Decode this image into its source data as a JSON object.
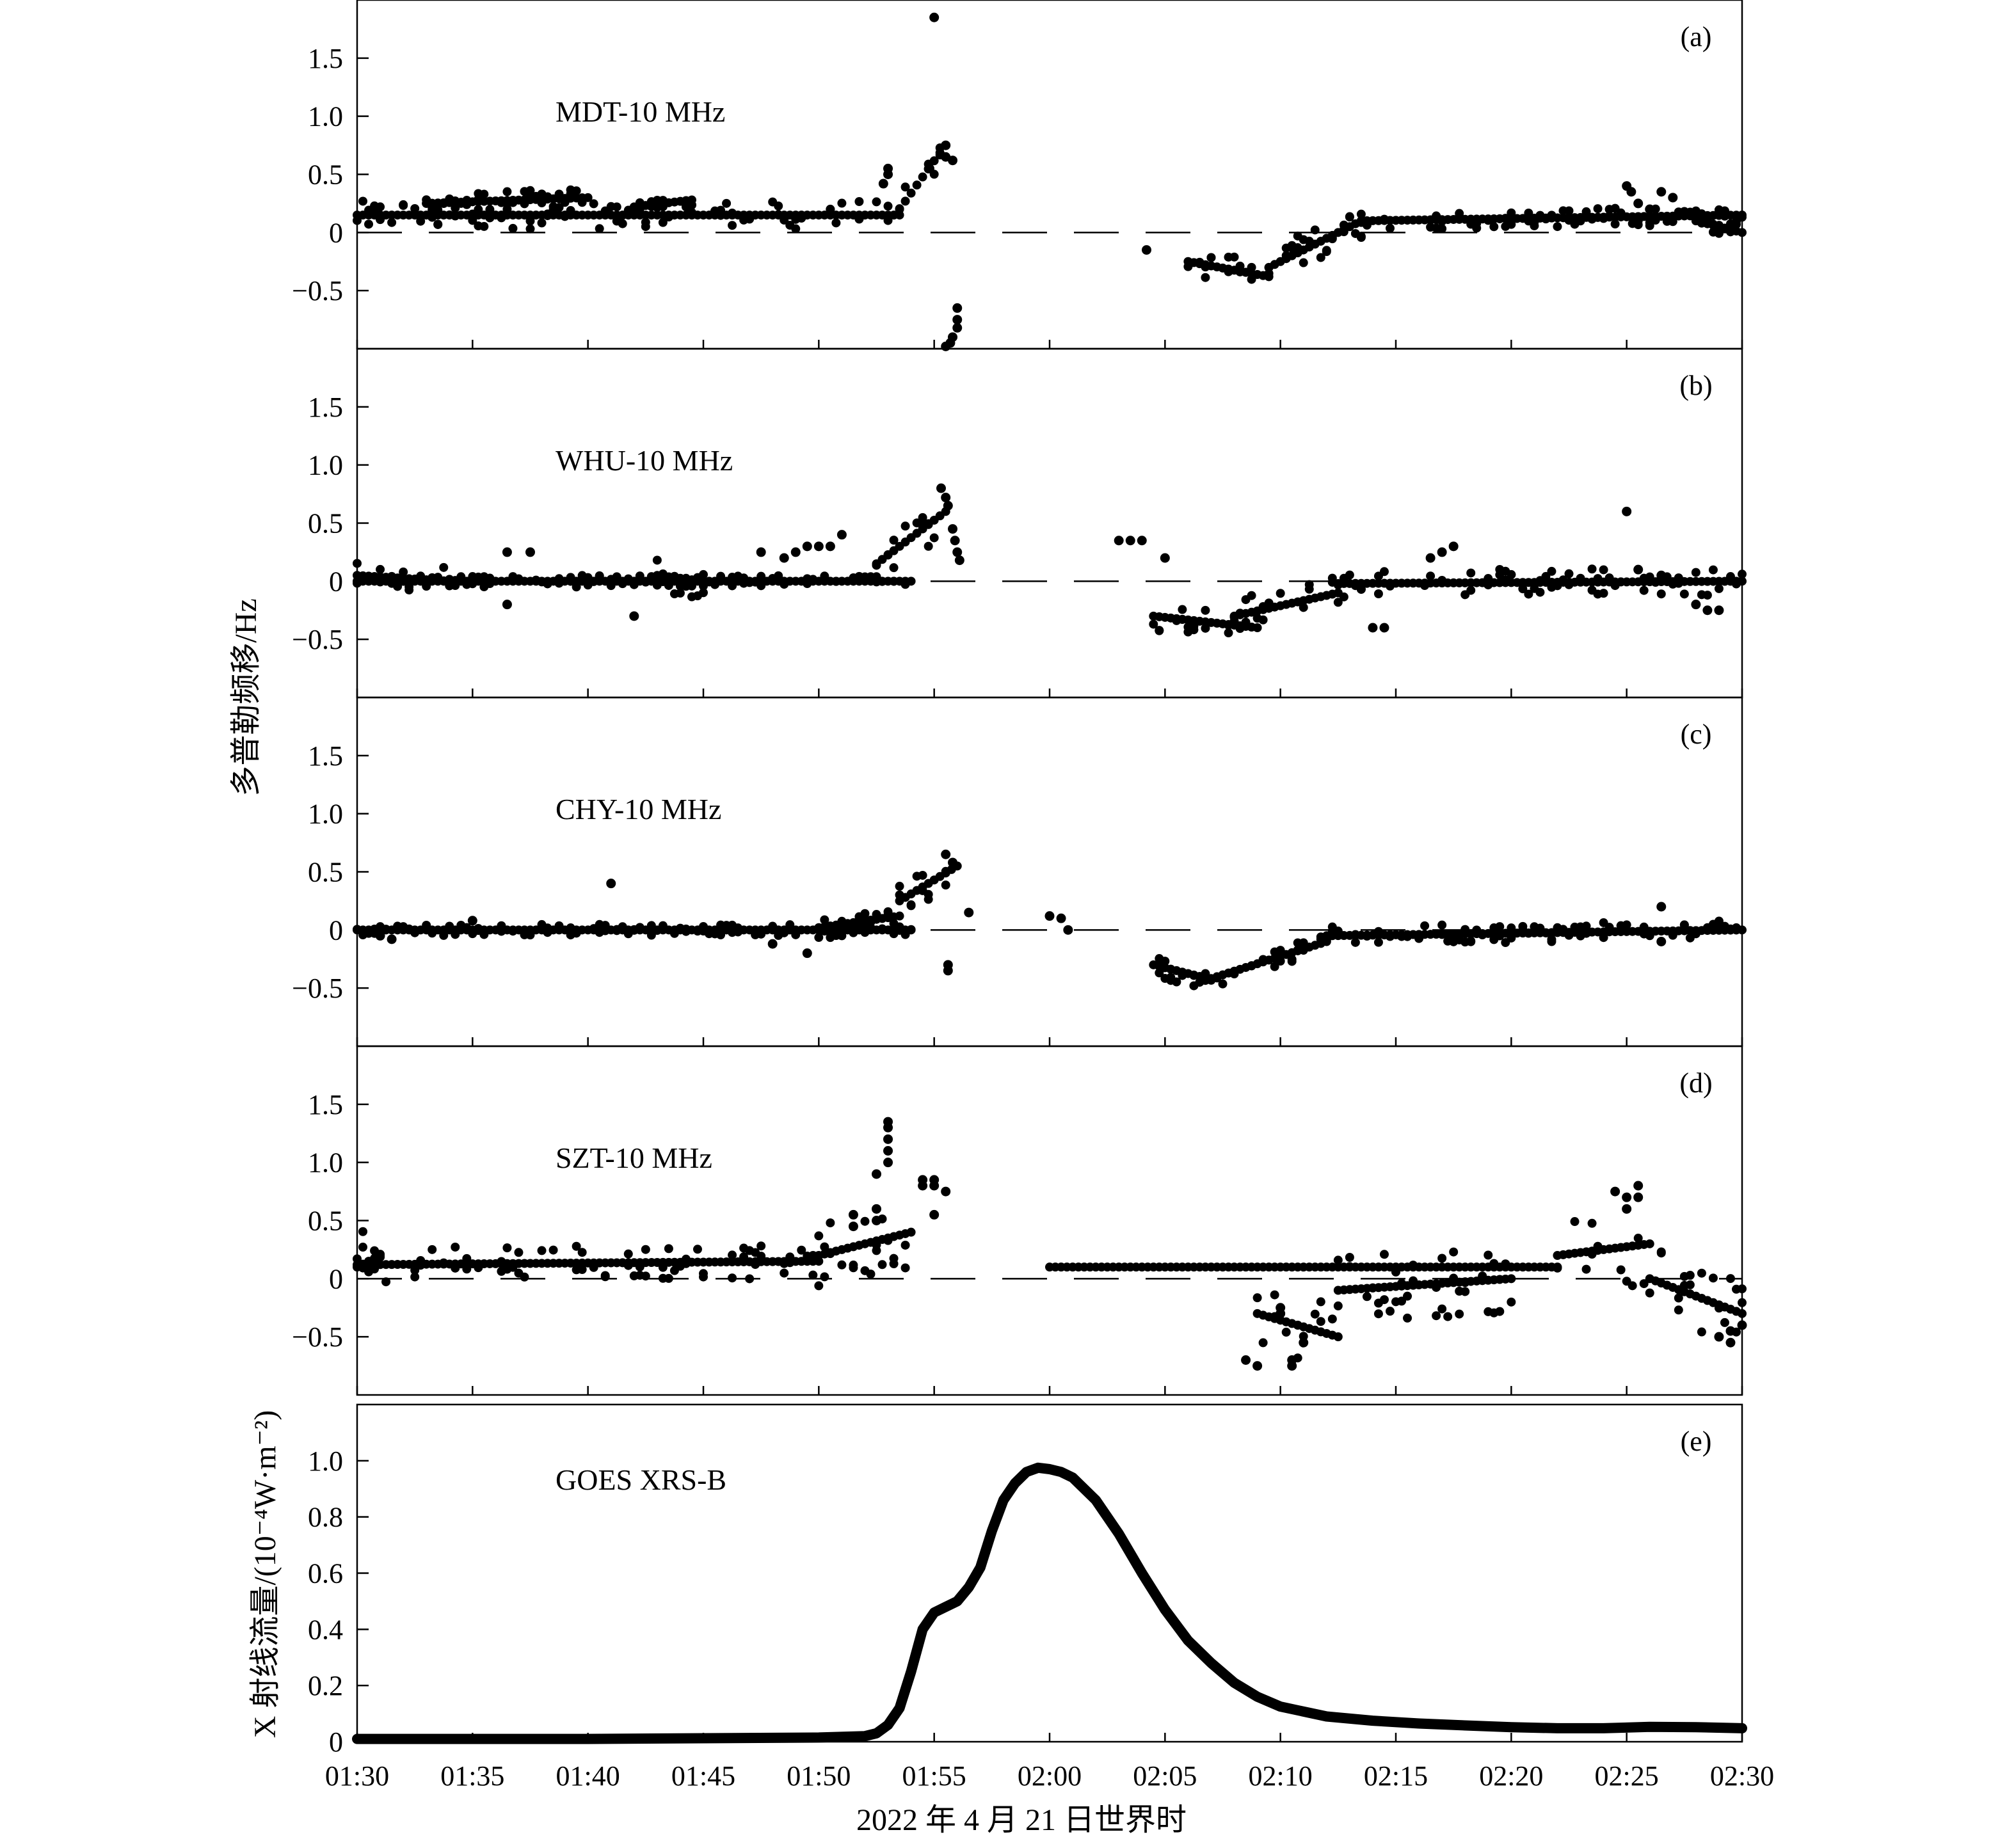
{
  "colors": {
    "ink": "#000000",
    "background": "#ffffff"
  },
  "chart_data": [
    {
      "type": "scatter",
      "panel": "(a)",
      "series_label": "MDT-10 MHz",
      "ylim": [
        -1.0,
        2.0
      ],
      "yticks": [
        "1.5",
        "1.0",
        "0.5",
        "0",
        "−0.5"
      ],
      "ytick_values": [
        1.5,
        1.0,
        0.5,
        0,
        -0.5
      ],
      "reference_line": 0,
      "segments": [
        {
          "t0": 0,
          "t1": 23.5,
          "y0": 0.15,
          "y1": 0.15,
          "spread": 0.12
        },
        {
          "t0": 3,
          "t1": 10,
          "y0": 0.25,
          "y1": 0.3,
          "spread": 0.08
        },
        {
          "t0": 12,
          "t1": 14.5,
          "y0": 0.22,
          "y1": 0.28,
          "spread": 0.05
        },
        {
          "t0": 23.5,
          "t1": 25.3,
          "y0": 0.2,
          "y1": 0.7,
          "spread": 0.15
        },
        {
          "t0": 36,
          "t1": 39.5,
          "y0": -0.25,
          "y1": -0.38,
          "spread": 0.12
        },
        {
          "t0": 39.5,
          "t1": 43.5,
          "y0": -0.3,
          "y1": 0.1,
          "spread": 0.15
        },
        {
          "t0": 43.5,
          "t1": 60,
          "y0": 0.1,
          "y1": 0.15,
          "spread": 0.08
        },
        {
          "t0": 58,
          "t1": 60,
          "y0": 0.1,
          "y1": 0.0,
          "spread": 0.06
        }
      ],
      "points": [
        [
          25.0,
          1.85
        ],
        [
          25.5,
          0.75
        ],
        [
          25.5,
          0.65
        ],
        [
          25.8,
          0.62
        ],
        [
          24.8,
          0.55
        ],
        [
          23.0,
          0.55
        ],
        [
          23.0,
          0.5
        ],
        [
          22.8,
          0.42
        ],
        [
          26.0,
          -0.65
        ],
        [
          26.0,
          -0.75
        ],
        [
          26.0,
          -0.82
        ],
        [
          25.8,
          -0.9
        ],
        [
          25.7,
          -0.95
        ],
        [
          25.5,
          -0.98
        ],
        [
          34.2,
          -0.15
        ],
        [
          55.0,
          0.4
        ],
        [
          55.2,
          0.35
        ],
        [
          56.5,
          0.35
        ],
        [
          57.0,
          0.3
        ],
        [
          55.5,
          0.25
        ],
        [
          56.0,
          0.2
        ]
      ]
    },
    {
      "type": "scatter",
      "panel": "(b)",
      "series_label": "WHU-10 MHz",
      "ylim": [
        -1.0,
        2.0
      ],
      "yticks": [
        "1.5",
        "1.0",
        "0.5",
        "0",
        "−0.5"
      ],
      "ytick_values": [
        1.5,
        1.0,
        0.5,
        0,
        -0.5
      ],
      "reference_line": 0,
      "segments": [
        {
          "t0": 0,
          "t1": 24,
          "y0": 0.0,
          "y1": 0.0,
          "spread": 0.05
        },
        {
          "t0": 0,
          "t1": 4,
          "y0": 0.05,
          "y1": 0.0,
          "spread": 0.15
        },
        {
          "t0": 13,
          "t1": 15,
          "y0": 0.05,
          "y1": 0.0,
          "spread": 0.15
        },
        {
          "t0": 22.5,
          "t1": 25.5,
          "y0": 0.15,
          "y1": 0.6,
          "spread": 0.2
        },
        {
          "t0": 34.5,
          "t1": 39,
          "y0": -0.3,
          "y1": -0.4,
          "spread": 0.12
        },
        {
          "t0": 38,
          "t1": 42.5,
          "y0": -0.3,
          "y1": -0.1,
          "spread": 0.15
        },
        {
          "t0": 42.5,
          "t1": 60,
          "y0": -0.02,
          "y1": 0.0,
          "spread": 0.12
        }
      ],
      "points": [
        [
          25.3,
          0.8
        ],
        [
          25.5,
          0.72
        ],
        [
          25.6,
          0.65
        ],
        [
          25.8,
          0.45
        ],
        [
          25.9,
          0.35
        ],
        [
          26.0,
          0.25
        ],
        [
          26.1,
          0.18
        ],
        [
          6.5,
          0.25
        ],
        [
          7.5,
          0.25
        ],
        [
          6.5,
          -0.2
        ],
        [
          12.0,
          -0.3
        ],
        [
          17.5,
          0.25
        ],
        [
          21.0,
          0.4
        ],
        [
          18.5,
          0.2
        ],
        [
          19.0,
          0.25
        ],
        [
          19.5,
          0.3
        ],
        [
          20.0,
          0.3
        ],
        [
          20.5,
          0.3
        ],
        [
          33.0,
          0.35
        ],
        [
          33.5,
          0.35
        ],
        [
          34.0,
          0.35
        ],
        [
          35.0,
          0.2
        ],
        [
          44.0,
          -0.4
        ],
        [
          44.5,
          -0.4
        ],
        [
          46.5,
          0.2
        ],
        [
          47.0,
          0.25
        ],
        [
          47.5,
          0.3
        ],
        [
          55.0,
          0.6
        ],
        [
          55.5,
          0.1
        ],
        [
          56.5,
          0.05
        ],
        [
          58.0,
          -0.2
        ],
        [
          58.5,
          -0.25
        ],
        [
          59.0,
          -0.25
        ]
      ]
    },
    {
      "type": "scatter",
      "panel": "(c)",
      "series_label": "CHY-10 MHz",
      "ylim": [
        -1.0,
        2.0
      ],
      "yticks": [
        "1.5",
        "1.0",
        "0.5",
        "0",
        "−0.5"
      ],
      "ytick_values": [
        1.5,
        1.0,
        0.5,
        0,
        -0.5
      ],
      "reference_line": 0,
      "segments": [
        {
          "t0": 0,
          "t1": 24,
          "y0": 0.0,
          "y1": 0.0,
          "spread": 0.05
        },
        {
          "t0": 20,
          "t1": 23.5,
          "y0": 0.02,
          "y1": 0.12,
          "spread": 0.1
        },
        {
          "t0": 23.5,
          "t1": 26,
          "y0": 0.25,
          "y1": 0.55,
          "spread": 0.15
        },
        {
          "t0": 34.5,
          "t1": 36.5,
          "y0": -0.3,
          "y1": -0.4,
          "spread": 0.1
        },
        {
          "t0": 36.5,
          "t1": 42,
          "y0": -0.45,
          "y1": -0.1,
          "spread": 0.08
        },
        {
          "t0": 42,
          "t1": 60,
          "y0": -0.05,
          "y1": 0.0,
          "spread": 0.08
        }
      ],
      "points": [
        [
          11.0,
          0.4
        ],
        [
          25.5,
          0.65
        ],
        [
          25.8,
          0.58
        ],
        [
          25.6,
          -0.3
        ],
        [
          25.6,
          -0.35
        ],
        [
          26.5,
          0.15
        ],
        [
          30.0,
          0.12
        ],
        [
          30.5,
          0.1
        ],
        [
          30.8,
          0.0
        ],
        [
          56.5,
          0.2
        ],
        [
          1.0,
          -0.05
        ],
        [
          1.5,
          -0.08
        ],
        [
          5.0,
          0.08
        ],
        [
          12.0,
          0.0
        ],
        [
          18.0,
          -0.12
        ],
        [
          19.5,
          -0.2
        ],
        [
          56.5,
          -0.1
        ]
      ]
    },
    {
      "type": "scatter",
      "panel": "(d)",
      "series_label": "SZT-10 MHz",
      "ylim": [
        -1.0,
        2.0
      ],
      "yticks": [
        "1.5",
        "1.0",
        "0.5",
        "0",
        "−0.5"
      ],
      "ytick_values": [
        1.5,
        1.0,
        0.5,
        0,
        -0.5
      ],
      "reference_line": 0,
      "segments": [
        {
          "t0": 0,
          "t1": 20,
          "y0": 0.12,
          "y1": 0.15,
          "spread": 0.15
        },
        {
          "t0": 0,
          "t1": 1,
          "y0": 0.1,
          "y1": 0.2,
          "spread": 0.3
        },
        {
          "t0": 20,
          "t1": 24,
          "y0": 0.2,
          "y1": 0.4,
          "spread": 0.3
        },
        {
          "t0": 30,
          "t1": 52,
          "y0": 0.1,
          "y1": 0.1,
          "spread": 0.0
        },
        {
          "t0": 39,
          "t1": 42.5,
          "y0": -0.3,
          "y1": -0.5,
          "spread": 0.3
        },
        {
          "t0": 42.5,
          "t1": 50,
          "y0": -0.1,
          "y1": 0.0,
          "spread": 0.3
        },
        {
          "t0": 52,
          "t1": 56,
          "y0": 0.2,
          "y1": 0.3,
          "spread": 0.35
        },
        {
          "t0": 56,
          "t1": 60,
          "y0": 0.0,
          "y1": -0.3,
          "spread": 0.3
        }
      ],
      "points": [
        [
          23.0,
          1.35
        ],
        [
          23.0,
          1.3
        ],
        [
          23.0,
          1.2
        ],
        [
          23.0,
          1.1
        ],
        [
          23.0,
          1.0
        ],
        [
          22.5,
          0.9
        ],
        [
          22.5,
          0.6
        ],
        [
          22.5,
          0.5
        ],
        [
          24.5,
          0.85
        ],
        [
          25.0,
          0.85
        ],
        [
          24.5,
          0.8
        ],
        [
          25.0,
          0.8
        ],
        [
          25.5,
          0.75
        ],
        [
          25.0,
          0.55
        ],
        [
          21.5,
          0.55
        ],
        [
          21.5,
          0.45
        ],
        [
          38.5,
          -0.7
        ],
        [
          39.0,
          -0.75
        ],
        [
          40.5,
          -0.75
        ],
        [
          40.5,
          -0.7
        ],
        [
          41.0,
          -0.55
        ],
        [
          40.0,
          -0.3
        ],
        [
          40.0,
          -0.25
        ],
        [
          54.5,
          0.75
        ],
        [
          55.0,
          0.7
        ],
        [
          55.0,
          0.6
        ],
        [
          55.5,
          0.8
        ],
        [
          55.5,
          0.7
        ],
        [
          59.5,
          -0.55
        ],
        [
          59.0,
          -0.5
        ],
        [
          59.5,
          -0.45
        ],
        [
          60.0,
          -0.4
        ]
      ]
    },
    {
      "type": "line",
      "panel": "(e)",
      "series_label": "GOES XRS-B",
      "ylabel": "X 射线流量/(10⁻⁴W·m⁻²)",
      "ylim": [
        0,
        1.2
      ],
      "yticks": [
        "1.0",
        "0.8",
        "0.6",
        "0.4",
        "0.2",
        "0"
      ],
      "ytick_values": [
        1.0,
        0.8,
        0.6,
        0.4,
        0.2,
        0
      ],
      "x": [
        0,
        10,
        20,
        22,
        22.5,
        23,
        23.5,
        24,
        24.5,
        25,
        25.5,
        26,
        26.5,
        27,
        27.5,
        28,
        28.5,
        29,
        29.5,
        30,
        30.5,
        31,
        32,
        33,
        34,
        35,
        36,
        37,
        38,
        39,
        40,
        42,
        44,
        46,
        48,
        50,
        52,
        54,
        56,
        58,
        60
      ],
      "y": [
        0.01,
        0.01,
        0.015,
        0.02,
        0.03,
        0.06,
        0.12,
        0.25,
        0.4,
        0.46,
        0.48,
        0.5,
        0.55,
        0.62,
        0.75,
        0.86,
        0.92,
        0.96,
        0.975,
        0.97,
        0.96,
        0.94,
        0.86,
        0.74,
        0.6,
        0.47,
        0.36,
        0.28,
        0.21,
        0.16,
        0.125,
        0.09,
        0.075,
        0.065,
        0.058,
        0.052,
        0.048,
        0.048,
        0.053,
        0.052,
        0.048
      ]
    }
  ],
  "y_axis_title_top": "多普勒频移/Hz",
  "x_axis": {
    "range_minutes": [
      0,
      60
    ],
    "tick_minutes": [
      0,
      5,
      10,
      15,
      20,
      25,
      30,
      35,
      40,
      45,
      50,
      55,
      60
    ],
    "tick_labels": [
      "01:30",
      "01:35",
      "01:40",
      "01:45",
      "01:50",
      "01:55",
      "02:00",
      "02:05",
      "02:10",
      "02:15",
      "02:20",
      "02:25",
      "02:30"
    ],
    "title": "2022 年 4 月 21 日世界时"
  }
}
